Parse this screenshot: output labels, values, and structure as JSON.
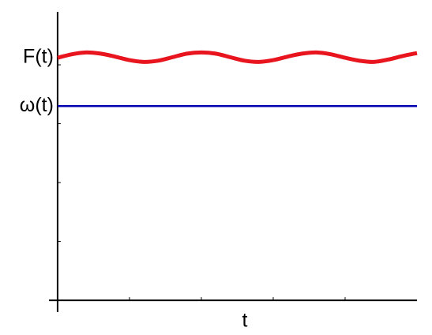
{
  "chart_data": {
    "type": "line",
    "x_label": "t",
    "x": [
      0,
      0.2,
      0.4,
      0.6,
      0.8,
      1.0,
      1.2,
      1.4,
      1.6,
      1.8,
      2.0,
      2.2,
      2.4,
      2.6,
      2.8,
      3.0,
      3.2,
      3.4,
      3.6,
      3.8,
      4.0,
      4.2,
      4.4,
      4.6,
      4.8,
      5.0
    ],
    "series": [
      {
        "name": "F(t)",
        "color": "#e8141e",
        "values": [
          4.12,
          4.18,
          4.21,
          4.19,
          4.14,
          4.08,
          4.05,
          4.07,
          4.13,
          4.19,
          4.21,
          4.19,
          4.13,
          4.07,
          4.05,
          4.08,
          4.14,
          4.19,
          4.21,
          4.18,
          4.12,
          4.07,
          4.05,
          4.09,
          4.15,
          4.2
        ]
      },
      {
        "name": "ω(t)",
        "color": "#0000b0",
        "values": [
          3.3,
          3.3,
          3.3,
          3.3,
          3.3,
          3.3,
          3.3,
          3.3,
          3.3,
          3.3,
          3.3,
          3.3,
          3.3,
          3.3,
          3.3,
          3.3,
          3.3,
          3.3,
          3.3,
          3.3,
          3.3,
          3.3,
          3.3,
          3.3,
          3.3,
          3.3
        ]
      }
    ],
    "xlim": [
      -0.12,
      5
    ],
    "ylim": [
      -0.2,
      4.9
    ],
    "xticks": [
      1,
      2,
      3,
      4
    ],
    "yticks": [
      1,
      2,
      3,
      4
    ]
  }
}
